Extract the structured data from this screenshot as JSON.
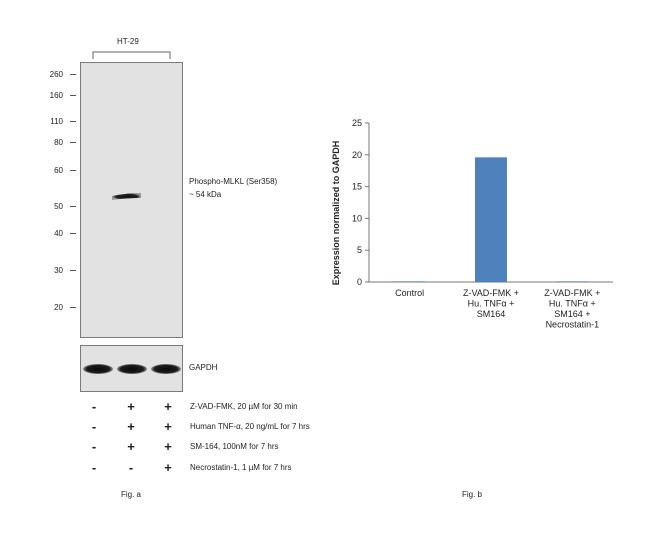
{
  "fig_a": {
    "cell_line": "HT-29",
    "mw_markers": [
      "260",
      "160",
      "110",
      "80",
      "60",
      "50",
      "40",
      "30",
      "20"
    ],
    "band_label": "Phospho-MLKL (Ser358)",
    "band_size": "~ 54 kDa",
    "loading_control": "GAPDH",
    "treatments": [
      {
        "label": "Z-VAD-FMK, 20 µM for 30 min",
        "signs": [
          "-",
          "+",
          "+"
        ]
      },
      {
        "label": "Human TNF-α, 20 ng/mL for 7 hrs",
        "signs": [
          "-",
          "+",
          "+"
        ]
      },
      {
        "label": "SM-164, 100nM for 7 hrs",
        "signs": [
          "-",
          "+",
          "+"
        ]
      },
      {
        "label": "Necrostatin-1, 1 µM for 7 hrs",
        "signs": [
          "-",
          "-",
          "+"
        ]
      }
    ],
    "caption": "Fig. a"
  },
  "fig_b": {
    "caption": "Fig. b"
  },
  "chart_data": {
    "type": "bar",
    "categories": [
      [
        "Control"
      ],
      [
        "Z-VAD-FMK +",
        "Hu. TNFα +",
        "SM164"
      ],
      [
        "Z-VAD-FMK +",
        "Hu. TNFα +",
        "SM164 +",
        "Necrostatin-1"
      ]
    ],
    "values": [
      0.1,
      19.6,
      0.1
    ],
    "ylabel": "Expression normalized to GAPDH",
    "ylim": [
      0,
      25
    ],
    "yticks": [
      "0",
      "5",
      "10",
      "15",
      "20",
      "25"
    ],
    "bar_color": "#4f81bd",
    "grid": false
  }
}
